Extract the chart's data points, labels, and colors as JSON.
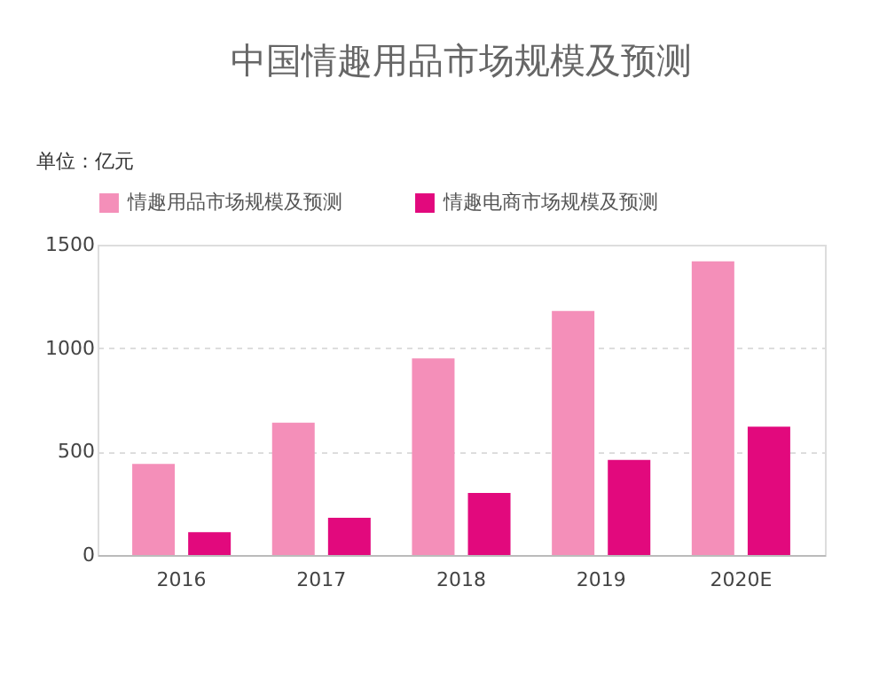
{
  "chart_data": {
    "type": "bar",
    "title": "中国情趣用品市场规模及预测",
    "ylabel": "单位：亿元",
    "categories": [
      "2016",
      "2017",
      "2018",
      "2019",
      "2020E"
    ],
    "series": [
      {
        "name": "情趣用品市场规模及预测",
        "color": "#f48fb9",
        "values": [
          440,
          640,
          950,
          1180,
          1420
        ]
      },
      {
        "name": "情趣电商市场规模及预测",
        "color": "#e2097d",
        "values": [
          110,
          180,
          300,
          460,
          620
        ]
      }
    ],
    "ylim": [
      0,
      1500
    ],
    "yticks": [
      0,
      500,
      1000,
      1500
    ],
    "grid": "y",
    "legend": "top"
  }
}
